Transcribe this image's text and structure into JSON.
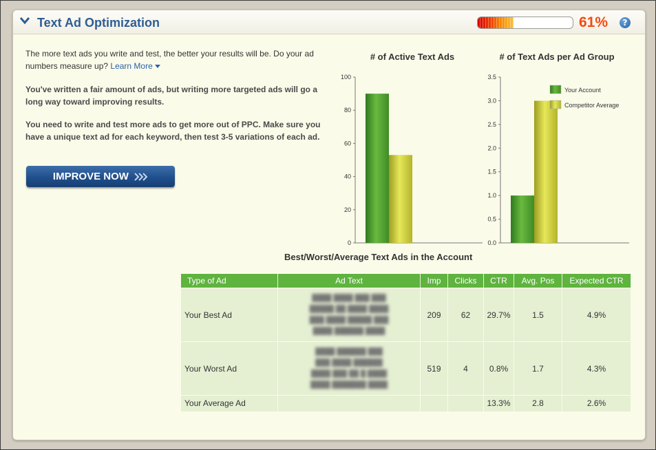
{
  "section": {
    "title": "Text Ad Optimization",
    "score_percent": 61,
    "score_label": "61%",
    "help_label": "?"
  },
  "intro": {
    "text": "The more text ads you write and test, the better your results will be. Do your ad numbers measure up? ",
    "learn_more": "Learn More"
  },
  "messages": [
    "You've written a fair amount of ads, but writing more targeted ads will go a long way toward improving results.",
    "You need to write and test more ads to get more out of PPC. Make sure you have a unique text ad for each keyword, then test 3-5 variations of each ad."
  ],
  "improve_button": {
    "label": "IMPROVE NOW",
    "icon": "chevrons-right-icon"
  },
  "colors": {
    "your_account": "#4f9a2c",
    "competitor": "#c9c93a",
    "accent": "#2e5d94",
    "score": "#f24b12"
  },
  "chart_data": [
    {
      "type": "bar",
      "title": "# of Active Text Ads",
      "categories": [
        ""
      ],
      "series": [
        {
          "name": "Your Account",
          "values": [
            90
          ]
        },
        {
          "name": "Competitor Average",
          "values": [
            53
          ]
        }
      ],
      "yticks": [
        "0",
        "20",
        "40",
        "60",
        "80",
        "100"
      ],
      "ylim": [
        0,
        100
      ]
    },
    {
      "type": "bar",
      "title": "# of Text Ads per Ad Group",
      "categories": [
        ""
      ],
      "series": [
        {
          "name": "Your Account",
          "values": [
            1.0
          ]
        },
        {
          "name": "Competitor Average",
          "values": [
            3.0
          ]
        }
      ],
      "yticks": [
        "0.0",
        "0.5",
        "1.0",
        "1.5",
        "2.0",
        "2.5",
        "3.0",
        "3.5"
      ],
      "ylim": [
        0,
        3.5
      ],
      "legend": [
        "Your Account",
        "Competitor Average"
      ],
      "legend_position": "top-right"
    }
  ],
  "table": {
    "title": "Best/Worst/Average Text Ads in the Account",
    "headers": [
      "Type of Ad",
      "Ad Text",
      "Imp",
      "Clicks",
      "CTR",
      "Avg. Pos",
      "Expected CTR"
    ],
    "rows": [
      {
        "type": "Your Best Ad",
        "ad_text": "Blurred ad text",
        "imp": "209",
        "clicks": "62",
        "ctr": "29.7%",
        "avg_pos": "1.5",
        "expected_ctr": "4.9%"
      },
      {
        "type": "Your Worst Ad",
        "ad_text": "Blurred ad text",
        "imp": "519",
        "clicks": "4",
        "ctr": "0.8%",
        "avg_pos": "1.7",
        "expected_ctr": "4.3%"
      },
      {
        "type": "Your Average Ad",
        "ad_text": "",
        "imp": "",
        "clicks": "",
        "ctr": "13.3%",
        "avg_pos": "2.8",
        "expected_ctr": "2.6%"
      }
    ]
  }
}
